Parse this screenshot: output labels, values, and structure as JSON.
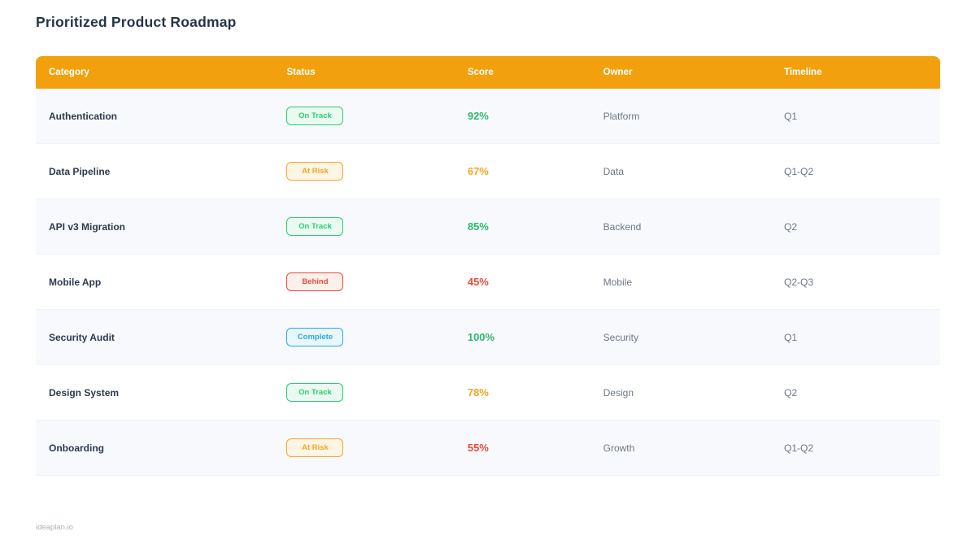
{
  "page": {
    "title": "Prioritized Product Roadmap",
    "footer": "ideaplan.io"
  },
  "colors": {
    "header_bg": "#F3A00F",
    "green": "#2abd6c",
    "orange": "#f5a623",
    "red": "#e74c3c",
    "blue": "#2aa9dc",
    "title_text": "#263449",
    "row_alt_bg": "#f8f9fc"
  },
  "table": {
    "columns": [
      "Category",
      "Status",
      "Score",
      "Owner",
      "Timeline"
    ],
    "rows": [
      {
        "category": "Authentication",
        "status": "On Track",
        "status_variant": "on-track",
        "score": "92%",
        "score_color": "green",
        "owner": "Platform",
        "timeline": "Q1"
      },
      {
        "category": "Data Pipeline",
        "status": "At Risk",
        "status_variant": "at-risk",
        "score": "67%",
        "score_color": "orange",
        "owner": "Data",
        "timeline": "Q1-Q2"
      },
      {
        "category": "API v3 Migration",
        "status": "On Track",
        "status_variant": "on-track",
        "score": "85%",
        "score_color": "green",
        "owner": "Backend",
        "timeline": "Q2"
      },
      {
        "category": "Mobile App",
        "status": "Behind",
        "status_variant": "behind",
        "score": "45%",
        "score_color": "red",
        "owner": "Mobile",
        "timeline": "Q2-Q3"
      },
      {
        "category": "Security Audit",
        "status": "Complete",
        "status_variant": "complete",
        "score": "100%",
        "score_color": "green",
        "owner": "Security",
        "timeline": "Q1"
      },
      {
        "category": "Design System",
        "status": "On Track",
        "status_variant": "on-track",
        "score": "78%",
        "score_color": "orange",
        "owner": "Design",
        "timeline": "Q2"
      },
      {
        "category": "Onboarding",
        "status": "At Risk",
        "status_variant": "at-risk",
        "score": "55%",
        "score_color": "red",
        "owner": "Growth",
        "timeline": "Q1-Q2"
      }
    ]
  }
}
